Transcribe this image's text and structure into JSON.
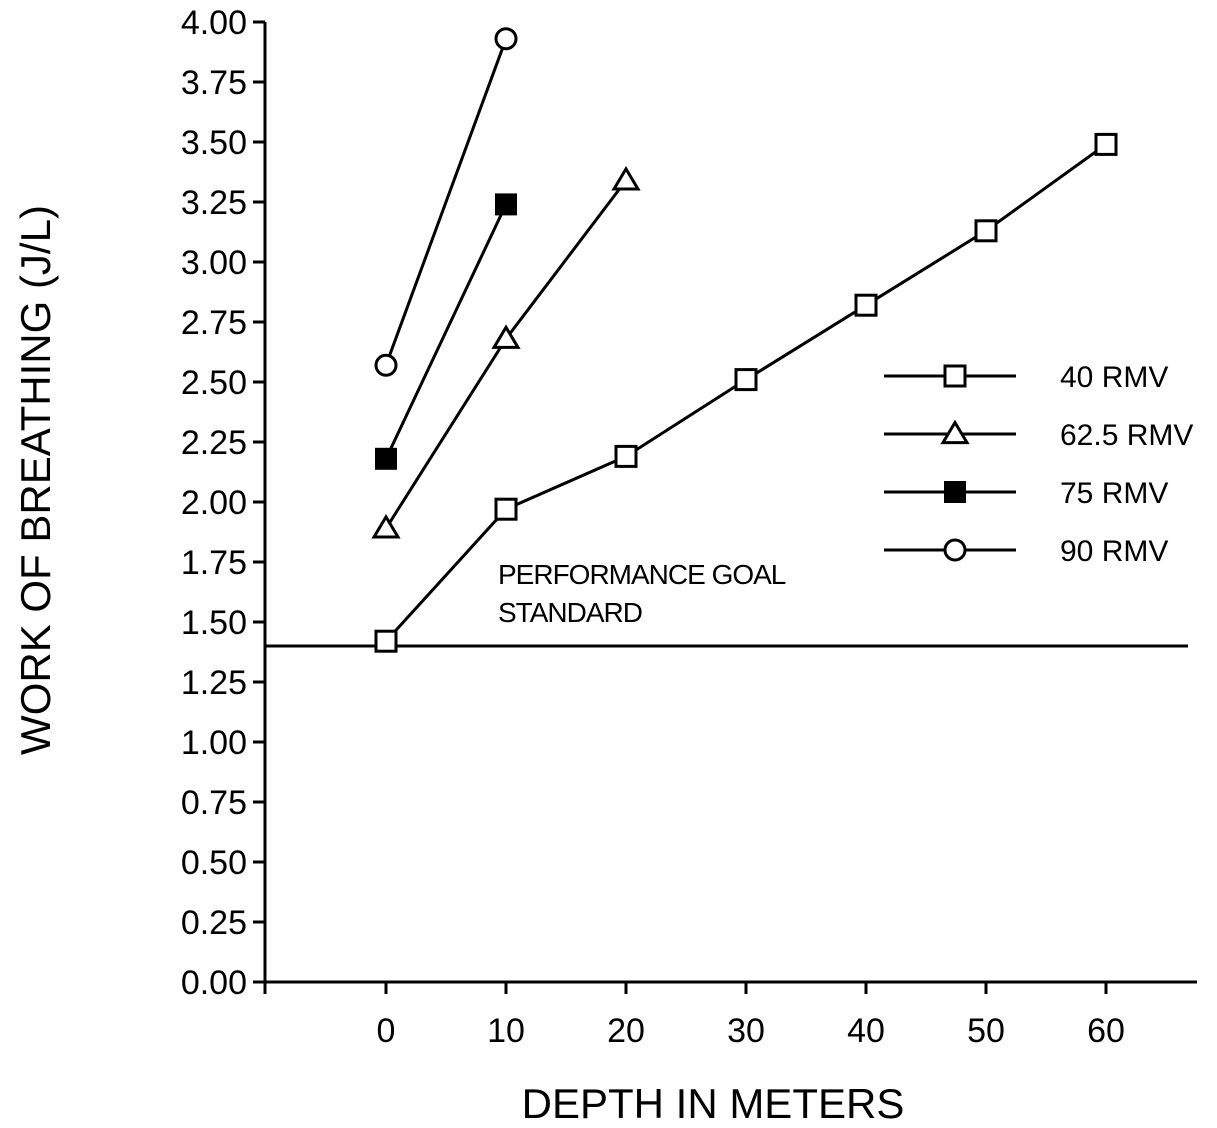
{
  "chart_data": {
    "type": "line",
    "title": "",
    "xlabel": "DEPTH IN METERS",
    "ylabel": "WORK OF BREATHING  (J/L)",
    "xlim": [
      -10,
      67
    ],
    "ylim": [
      0,
      4
    ],
    "x_ticks": [
      0,
      10,
      20,
      30,
      40,
      50,
      60
    ],
    "y_ticks": [
      0.0,
      0.25,
      0.5,
      0.75,
      1.0,
      1.25,
      1.5,
      1.75,
      2.0,
      2.25,
      2.5,
      2.75,
      3.0,
      3.25,
      3.5,
      3.75,
      4.0
    ],
    "y_tick_labels": [
      "0.00",
      "0.25",
      "0.50",
      "0.75",
      "1.00",
      "1.25",
      "1.50",
      "1.75",
      "2.00",
      "2.25",
      "2.50",
      "2.75",
      "3.00",
      "3.25",
      "3.50",
      "3.75",
      "4.00"
    ],
    "x_tick_labels": [
      "0",
      "10",
      "20",
      "30",
      "40",
      "50",
      "60"
    ],
    "grid": false,
    "legend_position": "right",
    "series": [
      {
        "name": "40 RMV",
        "marker": "open-square",
        "x": [
          0,
          10,
          20,
          30,
          40,
          50,
          60
        ],
        "y": [
          1.42,
          1.97,
          2.19,
          2.51,
          2.82,
          3.13,
          3.49
        ]
      },
      {
        "name": "62.5 RMV",
        "marker": "open-triangle",
        "x": [
          0,
          10,
          20
        ],
        "y": [
          1.89,
          2.68,
          3.34
        ]
      },
      {
        "name": "75 RMV",
        "marker": "filled-square",
        "x": [
          0,
          10
        ],
        "y": [
          2.18,
          3.24
        ]
      },
      {
        "name": "90 RMV",
        "marker": "open-circle",
        "x": [
          0,
          10
        ],
        "y": [
          2.57,
          3.93
        ]
      }
    ],
    "reference_line": {
      "y": 1.4,
      "label_lines": [
        "PERFORMANCE GOAL",
        "STANDARD"
      ]
    }
  }
}
